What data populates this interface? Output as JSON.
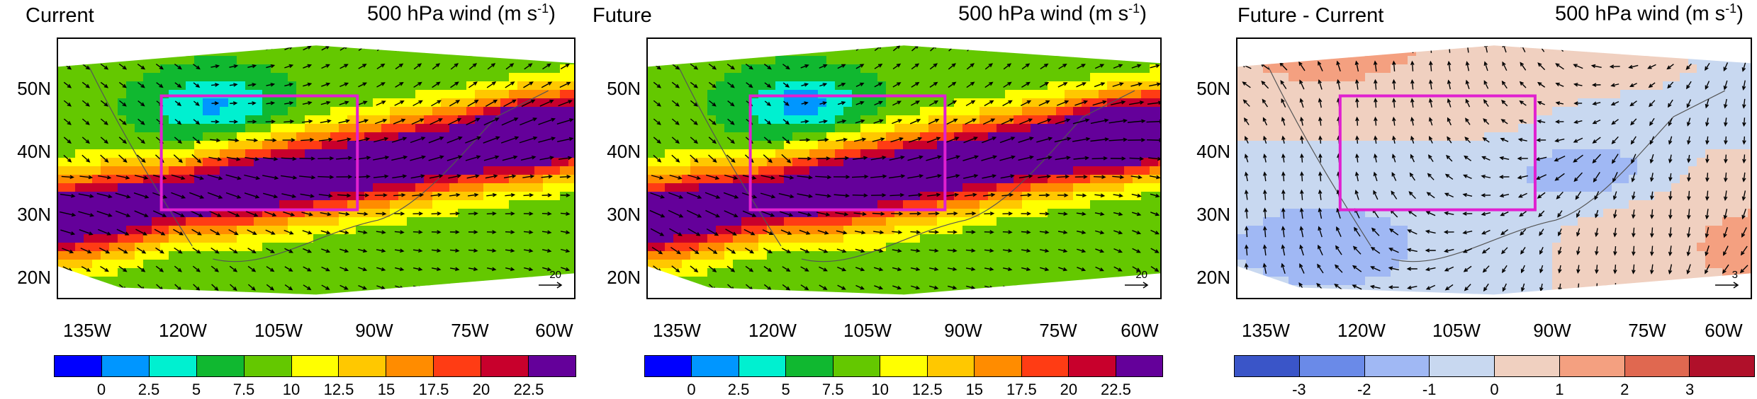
{
  "panels": [
    {
      "id": "current",
      "title": "Current",
      "subtitle_main": "500 hPa wind (m s",
      "subtitle_sup": "-1",
      "subtitle_end": ")",
      "ref_vector": "20",
      "colorbar": "wind"
    },
    {
      "id": "future",
      "title": "Future",
      "subtitle_main": "500 hPa wind (m s",
      "subtitle_sup": "-1",
      "subtitle_end": ")",
      "ref_vector": "20",
      "colorbar": "wind"
    },
    {
      "id": "diff",
      "title": "Future - Current",
      "subtitle_main": "500 hPa wind (m s",
      "subtitle_sup": "-1",
      "subtitle_end": ")",
      "ref_vector": "3",
      "colorbar": "diff"
    }
  ],
  "lat_labels": [
    "50N",
    "40N",
    "30N",
    "20N"
  ],
  "lon_labels": [
    "135W",
    "120W",
    "105W",
    "90W",
    "75W",
    "60W"
  ],
  "wind_colorbar": {
    "colors": [
      "#0000ff",
      "#0096ff",
      "#00f0d0",
      "#10b830",
      "#64c800",
      "#ffff00",
      "#ffc800",
      "#ff8c00",
      "#ff3c14",
      "#c8002c",
      "#64009a"
    ],
    "labels": [
      "0",
      "2.5",
      "5",
      "7.5",
      "10",
      "12.5",
      "15",
      "17.5",
      "20",
      "22.5"
    ]
  },
  "diff_colorbar": {
    "colors": [
      "#3a55c8",
      "#6a8ae8",
      "#a0b8f4",
      "#c8d8f0",
      "#f0d0c0",
      "#f4a080",
      "#e06850",
      "#b0102a"
    ],
    "labels": [
      "-3",
      "-2",
      "-1",
      "0",
      "1",
      "2",
      "3"
    ]
  },
  "box_color": "#e020d0"
}
